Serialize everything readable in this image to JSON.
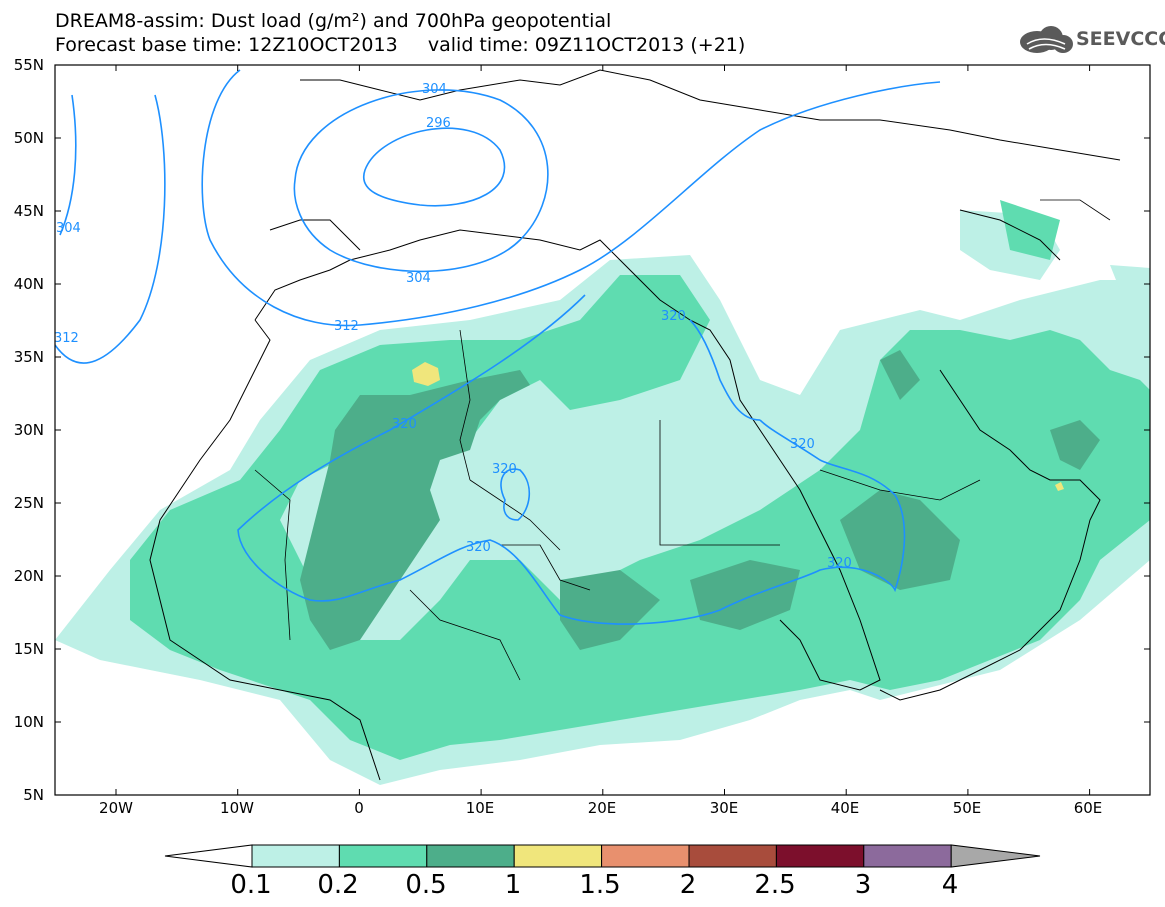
{
  "title": {
    "line1": "DREAM8-assim: Dust load (g/m²) and 700hPa geopotential",
    "line2": "Forecast base time: 12Z10OCT2013     valid time: 09Z11OCT2013 (+21)"
  },
  "logo": {
    "text": "SEEVCCC",
    "icon": "cloud-logo-icon"
  },
  "map": {
    "lon_range": [
      -25,
      65
    ],
    "lat_range": [
      5,
      55
    ],
    "lat_ticks": [
      "55N",
      "50N",
      "45N",
      "40N",
      "35N",
      "30N",
      "25N",
      "20N",
      "15N",
      "10N",
      "5N"
    ],
    "lon_ticks": [
      "20W",
      "10W",
      "0",
      "10E",
      "20E",
      "30E",
      "40E",
      "50E",
      "60E"
    ],
    "contour_labels": [
      "304",
      "296",
      "304",
      "312",
      "312",
      "320",
      "320",
      "320",
      "320",
      "320",
      "320",
      "304"
    ]
  },
  "colorbar": {
    "labels": [
      "0.1",
      "0.2",
      "0.5",
      "1",
      "1.5",
      "2",
      "2.5",
      "3",
      "4"
    ],
    "colors": [
      "#bdf0e6",
      "#5fdcb0",
      "#4dae8a",
      "#f0e67c",
      "#e8906e",
      "#a84c3c",
      "#7c0f2c",
      "#8c6a9c"
    ],
    "under_color": "#ffffff",
    "over_color": "#a8a8a8"
  }
}
